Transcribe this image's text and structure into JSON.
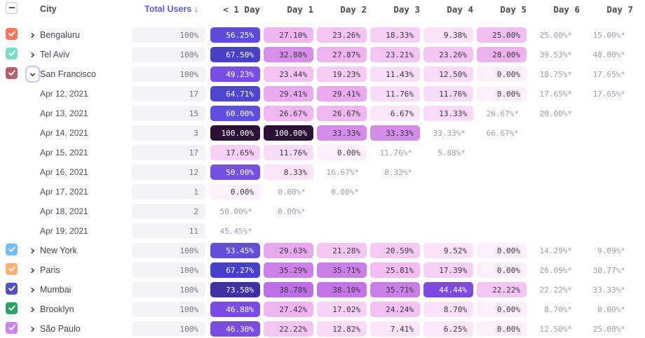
{
  "header": {
    "columns": [
      {
        "key": "city",
        "label": "City"
      },
      {
        "key": "total",
        "label": "Total Users ↓",
        "sorted": true
      },
      {
        "key": "d0",
        "label": "< 1 Day"
      },
      {
        "key": "d1",
        "label": "Day 1"
      },
      {
        "key": "d2",
        "label": "Day 2"
      },
      {
        "key": "d3",
        "label": "Day 3"
      },
      {
        "key": "d4",
        "label": "Day 4"
      },
      {
        "key": "d5",
        "label": "Day 5"
      },
      {
        "key": "d6",
        "label": "Day 6"
      },
      {
        "key": "d7",
        "label": "Day 7"
      }
    ]
  },
  "heat": {
    "white_text_min": 42,
    "dark_text_color": "#3c3544",
    "white_text_color": "#ffffff",
    "incomplete_text_color": "#9d9da7",
    "stops": [
      [
        0,
        "#fdf0fd"
      ],
      [
        10,
        "#fae1f9"
      ],
      [
        18,
        "#f7cff6"
      ],
      [
        24,
        "#f4c2f2"
      ],
      [
        28,
        "#efb2f0"
      ],
      [
        31,
        "#e3a0ed"
      ],
      [
        34,
        "#cf87e8"
      ],
      [
        38,
        "#c475e5"
      ],
      [
        41,
        "#a55fe3"
      ],
      [
        44,
        "#7c4ae1"
      ],
      [
        50,
        "#7650e2"
      ],
      [
        55,
        "#5c4ad9"
      ],
      [
        60,
        "#5e50dc"
      ],
      [
        66,
        "#4843d0"
      ],
      [
        74,
        "#40309f"
      ],
      [
        85,
        "#341f63"
      ],
      [
        100,
        "#2d1035"
      ]
    ]
  },
  "table": {
    "rows": [
      {
        "kind": "city",
        "label": "Bengaluru",
        "checkbox_color": "#ee795e",
        "expanded": false,
        "total": "100%",
        "cells": [
          "56.25%",
          "27.10%",
          "23.26%",
          "18.33%",
          "9.38%",
          "25.00%",
          "25.00%*",
          "15.00%*"
        ]
      },
      {
        "kind": "city",
        "label": "Tel Aviv",
        "checkbox_color": "#7cdcc4",
        "expanded": false,
        "total": "100%",
        "cells": [
          "67.50%",
          "32.88%",
          "27.87%",
          "23.21%",
          "23.26%",
          "28.00%",
          "39.53%*",
          "48.00%*"
        ]
      },
      {
        "kind": "city",
        "label": "San Francisco",
        "checkbox_color": "#b4616f",
        "expanded": true,
        "total": "100%",
        "cells": [
          "49.23%",
          "23.44%",
          "19.23%",
          "11.43%",
          "12.50%",
          "0.00%",
          "18.75%*",
          "17.65%*"
        ]
      },
      {
        "kind": "date",
        "label": "Apr 12, 2021",
        "total": "17",
        "cells": [
          "64.71%",
          "29.41%",
          "29.41%",
          "11.76%",
          "11.76%",
          "0.00%",
          "17.65%*",
          "17.65%*"
        ]
      },
      {
        "kind": "date",
        "label": "Apr 13, 2021",
        "total": "15",
        "cells": [
          "60.00%",
          "26.67%",
          "26.67%",
          "6.67%",
          "13.33%",
          "26.67%*",
          "20.00%*",
          ""
        ]
      },
      {
        "kind": "date",
        "label": "Apr 14, 2021",
        "total": "3",
        "cells": [
          "100.00%",
          "100.00%",
          "33.33%",
          "33.33%",
          "33.33%*",
          "66.67%*",
          "",
          ""
        ]
      },
      {
        "kind": "date",
        "label": "Apr 15, 2021",
        "total": "17",
        "cells": [
          "17.65%",
          "11.76%",
          "0.00%",
          "11.76%*",
          "5.88%*",
          "",
          "",
          ""
        ]
      },
      {
        "kind": "date",
        "label": "Apr 16, 2021",
        "total": "12",
        "cells": [
          "50.00%",
          "8.33%",
          "16.67%*",
          "8.33%*",
          "",
          "",
          "",
          ""
        ]
      },
      {
        "kind": "date",
        "label": "Apr 17, 2021",
        "total": "1",
        "cells": [
          "0.00%",
          "0.00%*",
          "0.00%*",
          "",
          "",
          "",
          "",
          ""
        ]
      },
      {
        "kind": "date",
        "label": "Apr 18, 2021",
        "total": "2",
        "cells": [
          "50.00%*",
          "0.00%*",
          "",
          "",
          "",
          "",
          "",
          ""
        ]
      },
      {
        "kind": "date",
        "label": "Apr 19, 2021",
        "total": "11",
        "cells": [
          "45.45%*",
          "",
          "",
          "",
          "",
          "",
          "",
          ""
        ]
      },
      {
        "kind": "city",
        "label": "New York",
        "checkbox_color": "#6fbdf2",
        "expanded": false,
        "total": "100%",
        "cells": [
          "53.45%",
          "29.63%",
          "21.28%",
          "20.59%",
          "9.52%",
          "0.00%",
          "14.29%*",
          "9.09%*"
        ]
      },
      {
        "kind": "city",
        "label": "Paris",
        "checkbox_color": "#f8b171",
        "expanded": false,
        "total": "100%",
        "cells": [
          "67.27%",
          "35.29%",
          "35.71%",
          "25.81%",
          "17.39%",
          "0.00%",
          "26.09%*",
          "30.77%*"
        ]
      },
      {
        "kind": "city",
        "label": "Mumbai",
        "checkbox_color": "#584fb8",
        "expanded": false,
        "total": "100%",
        "cells": [
          "73.58%",
          "38.78%",
          "38.10%",
          "35.71%",
          "44.44%",
          "22.22%",
          "22.22%*",
          "33.33%*"
        ]
      },
      {
        "kind": "city",
        "label": "Brooklyn",
        "checkbox_color": "#2ba164",
        "expanded": false,
        "total": "100%",
        "cells": [
          "46.88%",
          "27.42%",
          "17.02%",
          "24.24%",
          "8.70%",
          "0.00%",
          "8.70%*",
          "0.00%*"
        ]
      },
      {
        "kind": "city",
        "label": "São Paulo",
        "checkbox_color": "#c887e9",
        "expanded": false,
        "total": "100%",
        "cells": [
          "46.30%",
          "22.22%",
          "12.82%",
          "7.41%",
          "6.25%",
          "0.00%",
          "12.50%*",
          "25.00%*"
        ]
      }
    ]
  }
}
